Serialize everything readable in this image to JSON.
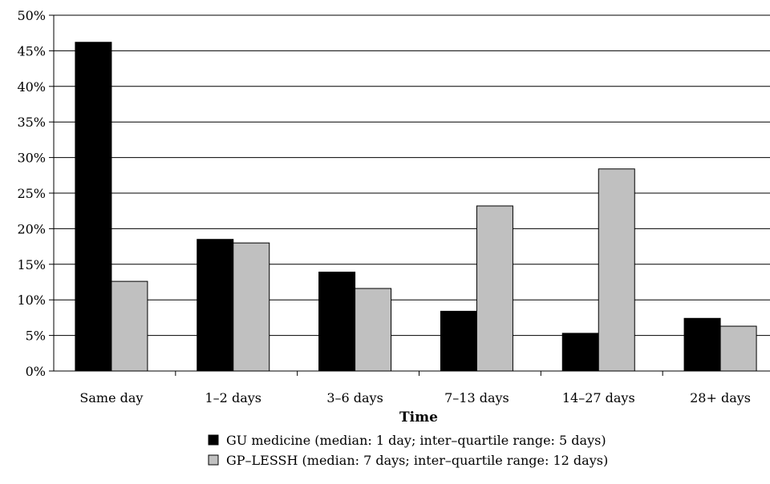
{
  "chart_data": {
    "type": "bar",
    "title": "",
    "xlabel": "Time",
    "ylabel": "",
    "categories": [
      "Same day",
      "1–2 days",
      "3–6 days",
      "7–13 days",
      "14–27 days",
      "28+ days"
    ],
    "series": [
      {
        "name": "GU medicine (median: 1 day; inter–quartile range: 5 days)",
        "color": "#000000",
        "values": [
          46.2,
          18.5,
          13.9,
          8.4,
          5.3,
          7.4
        ]
      },
      {
        "name": "GP–LESSH (median: 7 days; inter–quartile range: 12 days)",
        "color": "#c0c0c0",
        "values": [
          12.6,
          18.0,
          11.6,
          23.2,
          28.4,
          6.3
        ]
      }
    ],
    "ylim": [
      0,
      50
    ],
    "yticks": [
      0,
      5,
      10,
      15,
      20,
      25,
      30,
      35,
      40,
      45,
      50
    ],
    "ytick_suffix": "%",
    "grid": true,
    "legend_position": "bottom-center"
  }
}
